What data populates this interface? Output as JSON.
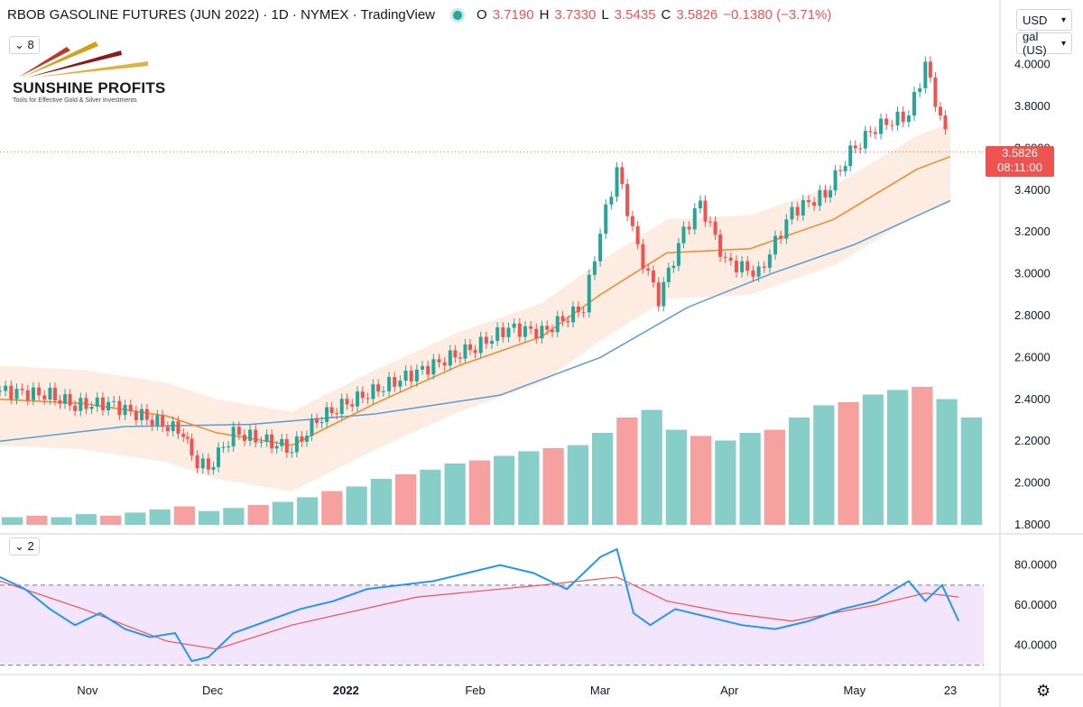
{
  "header": {
    "title": "RBOB GASOLINE FUTURES (JUN 2022) · 1D · NYMEX · TradingView",
    "open_label": "O",
    "open": "3.7190",
    "high_label": "H",
    "high": "3.7330",
    "low_label": "L",
    "low": "3.5435",
    "close_label": "C",
    "close": "3.5826",
    "change": "−0.1380 (−3.71%)"
  },
  "main_pane_collapse": "8",
  "rsi_pane_collapse": "2",
  "currency_select": "USD",
  "unit_select": "gal (US)",
  "logo": {
    "name": "SUNSHINE PROFITS",
    "tagline": "Tools for Effective Gold & Silver Investments"
  },
  "last_price": {
    "value": "3.5826",
    "countdown": "08:11:00"
  },
  "colors": {
    "up": "#26a69a",
    "down": "#ef5350",
    "ma_short": "#f0892a",
    "ma_long": "#5b9bd5",
    "rsi": "#2196f3",
    "rsi_ma": "#ef5350",
    "rsi_band": "#f3e5fc",
    "vp_level": "#2962ff"
  },
  "chart_data": [
    {
      "type": "candlestick",
      "y_tick_labels": [
        "4.0000",
        "3.8000",
        "3.6000",
        "3.4000",
        "3.2000",
        "3.0000",
        "2.8000",
        "2.6000",
        "2.4000",
        "2.2000",
        "2.0000",
        "1.8000"
      ],
      "y_range": [
        1.8,
        4.05
      ],
      "x_tick_labels": [
        "Nov",
        "Dec",
        "2022",
        "Feb",
        "Mar",
        "Apr",
        "May",
        "23"
      ],
      "x_ticks": [
        {
          "label": "Nov",
          "x": 21
        },
        {
          "label": "Dec",
          "x": 51
        },
        {
          "label": "2022",
          "x": 83
        },
        {
          "label": "Feb",
          "x": 114
        },
        {
          "label": "Mar",
          "x": 144
        },
        {
          "label": "Apr",
          "x": 175
        },
        {
          "label": "May",
          "x": 205
        },
        {
          "label": "23",
          "x": 228
        }
      ],
      "x_range": [
        0,
        236
      ],
      "close_series": [
        {
          "x": 0,
          "y": 2.44
        },
        {
          "x": 12,
          "y": 2.42
        },
        {
          "x": 18,
          "y": 2.37
        },
        {
          "x": 26,
          "y": 2.38
        },
        {
          "x": 34,
          "y": 2.32
        },
        {
          "x": 44,
          "y": 2.24
        },
        {
          "x": 46,
          "y": 2.12
        },
        {
          "x": 50,
          "y": 2.07
        },
        {
          "x": 56,
          "y": 2.24
        },
        {
          "x": 64,
          "y": 2.2
        },
        {
          "x": 70,
          "y": 2.16
        },
        {
          "x": 76,
          "y": 2.3
        },
        {
          "x": 82,
          "y": 2.37
        },
        {
          "x": 92,
          "y": 2.46
        },
        {
          "x": 100,
          "y": 2.53
        },
        {
          "x": 108,
          "y": 2.6
        },
        {
          "x": 114,
          "y": 2.65
        },
        {
          "x": 122,
          "y": 2.74
        },
        {
          "x": 130,
          "y": 2.72
        },
        {
          "x": 140,
          "y": 2.84
        },
        {
          "x": 144,
          "y": 3.2
        },
        {
          "x": 148,
          "y": 3.5
        },
        {
          "x": 153,
          "y": 3.12
        },
        {
          "x": 158,
          "y": 2.88
        },
        {
          "x": 164,
          "y": 3.2
        },
        {
          "x": 168,
          "y": 3.34
        },
        {
          "x": 174,
          "y": 3.06
        },
        {
          "x": 182,
          "y": 3.0
        },
        {
          "x": 190,
          "y": 3.3
        },
        {
          "x": 198,
          "y": 3.38
        },
        {
          "x": 204,
          "y": 3.58
        },
        {
          "x": 210,
          "y": 3.7
        },
        {
          "x": 218,
          "y": 3.76
        },
        {
          "x": 222,
          "y": 4.0
        },
        {
          "x": 228,
          "y": 3.58
        }
      ],
      "ma_short": [
        {
          "x": 0,
          "y": 2.4
        },
        {
          "x": 20,
          "y": 2.38
        },
        {
          "x": 40,
          "y": 2.32
        },
        {
          "x": 52,
          "y": 2.24
        },
        {
          "x": 70,
          "y": 2.18
        },
        {
          "x": 90,
          "y": 2.38
        },
        {
          "x": 110,
          "y": 2.56
        },
        {
          "x": 130,
          "y": 2.7
        },
        {
          "x": 144,
          "y": 2.9
        },
        {
          "x": 160,
          "y": 3.1
        },
        {
          "x": 180,
          "y": 3.12
        },
        {
          "x": 200,
          "y": 3.26
        },
        {
          "x": 220,
          "y": 3.5
        },
        {
          "x": 228,
          "y": 3.56
        }
      ],
      "ma_long": [
        {
          "x": 0,
          "y": 2.2
        },
        {
          "x": 30,
          "y": 2.27
        },
        {
          "x": 60,
          "y": 2.28
        },
        {
          "x": 90,
          "y": 2.33
        },
        {
          "x": 120,
          "y": 2.42
        },
        {
          "x": 144,
          "y": 2.6
        },
        {
          "x": 165,
          "y": 2.84
        },
        {
          "x": 185,
          "y": 3.0
        },
        {
          "x": 205,
          "y": 3.14
        },
        {
          "x": 228,
          "y": 3.35
        }
      ],
      "volume_relative": [
        0.05,
        0.06,
        0.05,
        0.07,
        0.06,
        0.08,
        0.1,
        0.12,
        0.09,
        0.11,
        0.13,
        0.15,
        0.18,
        0.22,
        0.25,
        0.3,
        0.33,
        0.36,
        0.4,
        0.42,
        0.45,
        0.48,
        0.5,
        0.52,
        0.6,
        0.7,
        0.75,
        0.62,
        0.58,
        0.55,
        0.6,
        0.62,
        0.7,
        0.78,
        0.8,
        0.85,
        0.88,
        0.9,
        0.82,
        0.7
      ]
    },
    {
      "type": "line",
      "y_tick_labels": [
        "80.0000",
        "60.0000",
        "40.0000"
      ],
      "y_range": [
        28,
        92
      ],
      "band": [
        30,
        70
      ],
      "rsi": [
        {
          "x": 0,
          "y": 74
        },
        {
          "x": 6,
          "y": 68
        },
        {
          "x": 12,
          "y": 58
        },
        {
          "x": 18,
          "y": 50
        },
        {
          "x": 24,
          "y": 56
        },
        {
          "x": 30,
          "y": 48
        },
        {
          "x": 36,
          "y": 44
        },
        {
          "x": 42,
          "y": 46
        },
        {
          "x": 46,
          "y": 32
        },
        {
          "x": 50,
          "y": 34
        },
        {
          "x": 56,
          "y": 46
        },
        {
          "x": 64,
          "y": 52
        },
        {
          "x": 72,
          "y": 58
        },
        {
          "x": 80,
          "y": 62
        },
        {
          "x": 88,
          "y": 68
        },
        {
          "x": 96,
          "y": 70
        },
        {
          "x": 104,
          "y": 72
        },
        {
          "x": 112,
          "y": 76
        },
        {
          "x": 120,
          "y": 80
        },
        {
          "x": 128,
          "y": 76
        },
        {
          "x": 136,
          "y": 68
        },
        {
          "x": 144,
          "y": 84
        },
        {
          "x": 148,
          "y": 88
        },
        {
          "x": 152,
          "y": 56
        },
        {
          "x": 156,
          "y": 50
        },
        {
          "x": 162,
          "y": 58
        },
        {
          "x": 170,
          "y": 54
        },
        {
          "x": 178,
          "y": 50
        },
        {
          "x": 186,
          "y": 48
        },
        {
          "x": 194,
          "y": 52
        },
        {
          "x": 202,
          "y": 58
        },
        {
          "x": 210,
          "y": 62
        },
        {
          "x": 218,
          "y": 72
        },
        {
          "x": 222,
          "y": 62
        },
        {
          "x": 226,
          "y": 70
        },
        {
          "x": 230,
          "y": 52
        }
      ],
      "rsi_ma": [
        {
          "x": 0,
          "y": 72
        },
        {
          "x": 20,
          "y": 58
        },
        {
          "x": 40,
          "y": 42
        },
        {
          "x": 52,
          "y": 38
        },
        {
          "x": 70,
          "y": 50
        },
        {
          "x": 100,
          "y": 64
        },
        {
          "x": 130,
          "y": 70
        },
        {
          "x": 148,
          "y": 74
        },
        {
          "x": 160,
          "y": 62
        },
        {
          "x": 175,
          "y": 56
        },
        {
          "x": 190,
          "y": 52
        },
        {
          "x": 210,
          "y": 60
        },
        {
          "x": 222,
          "y": 66
        },
        {
          "x": 230,
          "y": 64
        }
      ]
    }
  ]
}
